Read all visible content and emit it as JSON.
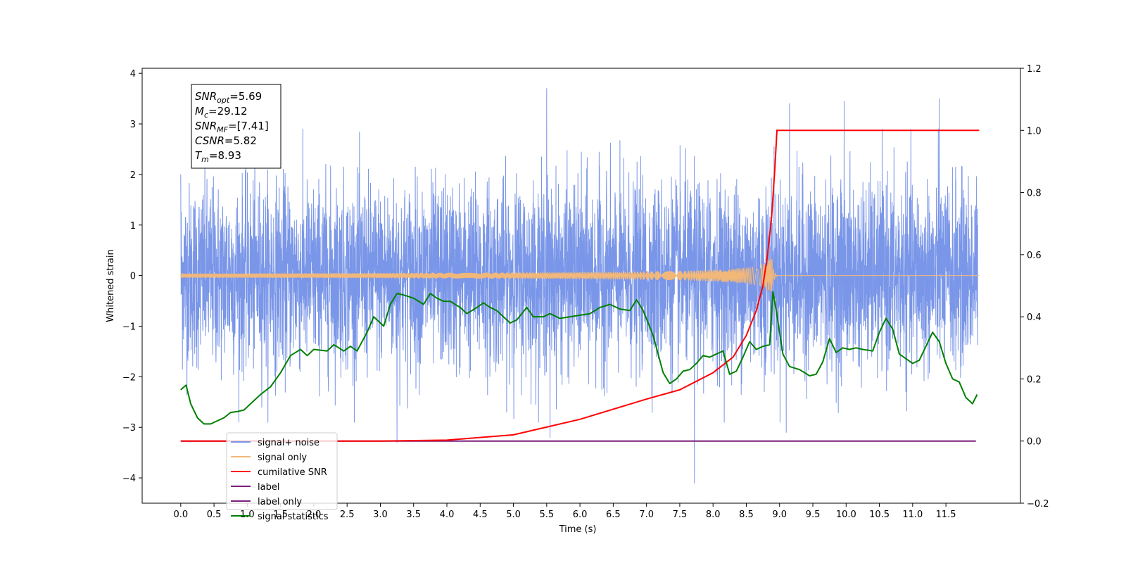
{
  "chart_data": {
    "type": "line",
    "xlabel": "Time (s)",
    "ylabel": "Whitened strain",
    "xlim": [
      -0.58,
      12.62
    ],
    "ylim_left": [
      -4.5,
      4.1
    ],
    "ylim_right": [
      -0.2,
      1.2
    ],
    "x_ticks": [
      "0.0",
      "0.5",
      "1.0",
      "1.5",
      "2.0",
      "2.5",
      "3.0",
      "3.5",
      "4.0",
      "4.5",
      "5.0",
      "5.5",
      "6.0",
      "6.5",
      "7.0",
      "7.5",
      "8.0",
      "8.5",
      "9.0",
      "9.5",
      "10.0",
      "10.5",
      "11.0",
      "11.5"
    ],
    "y_ticks_left": [
      "4",
      "3",
      "2",
      "1",
      "0",
      "−1",
      "−2",
      "−3",
      "−4"
    ],
    "y_ticks_right": [
      "1.2",
      "1.0",
      "0.8",
      "0.6",
      "0.4",
      "0.2",
      "0.0",
      "−0.2"
    ],
    "info_box": [
      {
        "base": "SNR",
        "sub": "opt",
        "rest": "=5.69"
      },
      {
        "base": "M",
        "sub": "c",
        "rest": "=29.12"
      },
      {
        "base": "SNR",
        "sub": "MF",
        "rest": "=[7.41]"
      },
      {
        "base": "CSNR",
        "sub": "",
        "rest": "=5.82"
      },
      {
        "base": "T",
        "sub": "m",
        "rest": "=8.93"
      }
    ],
    "series": [
      {
        "name": "signal+ noise",
        "color": "#7a96e8",
        "axis": "left",
        "noise_std": 0.9,
        "extremes": [
          {
            "x": 0.0,
            "y": 2.0
          },
          {
            "x": 3.25,
            "y": -3.3
          },
          {
            "x": 5.5,
            "y": 3.7
          },
          {
            "x": 5.55,
            "y": -3.2
          },
          {
            "x": 7.72,
            "y": -4.1
          },
          {
            "x": 9.1,
            "y": -3.1
          },
          {
            "x": 9.15,
            "y": 3.4
          },
          {
            "x": 9.97,
            "y": 3.45
          },
          {
            "x": 11.4,
            "y": 3.5
          }
        ]
      },
      {
        "name": "signal only",
        "color": "#f2b879",
        "axis": "left",
        "peak_time": 8.88,
        "peak_amplitude": 0.45
      },
      {
        "name": "cumilative SNR",
        "color": "#ff0000",
        "axis": "right",
        "points": [
          [
            0.0,
            0.0
          ],
          [
            3.0,
            0.0
          ],
          [
            4.0,
            0.003
          ],
          [
            5.0,
            0.02
          ],
          [
            6.0,
            0.07
          ],
          [
            7.0,
            0.135
          ],
          [
            7.5,
            0.165
          ],
          [
            8.0,
            0.22
          ],
          [
            8.3,
            0.27
          ],
          [
            8.5,
            0.34
          ],
          [
            8.65,
            0.42
          ],
          [
            8.75,
            0.5
          ],
          [
            8.82,
            0.6
          ],
          [
            8.88,
            0.72
          ],
          [
            8.93,
            0.88
          ],
          [
            8.96,
            1.0
          ],
          [
            12.0,
            1.0
          ]
        ]
      },
      {
        "name": "label",
        "color": "#7b1f7b",
        "axis": "right",
        "points": [
          [
            0.0,
            0.0
          ],
          [
            11.95,
            0.0
          ]
        ]
      },
      {
        "name": "label only",
        "color": "#7b1f7b",
        "axis": "right",
        "points": []
      },
      {
        "name": "signal statistics",
        "color": "#008000",
        "axis": "right",
        "points": [
          [
            0.0,
            0.165
          ],
          [
            0.08,
            0.18
          ],
          [
            0.15,
            0.12
          ],
          [
            0.25,
            0.075
          ],
          [
            0.35,
            0.055
          ],
          [
            0.45,
            0.055
          ],
          [
            0.55,
            0.065
          ],
          [
            0.65,
            0.075
          ],
          [
            0.75,
            0.092
          ],
          [
            0.85,
            0.095
          ],
          [
            0.95,
            0.1
          ],
          [
            1.05,
            0.12
          ],
          [
            1.2,
            0.15
          ],
          [
            1.35,
            0.175
          ],
          [
            1.5,
            0.22
          ],
          [
            1.65,
            0.275
          ],
          [
            1.8,
            0.295
          ],
          [
            1.9,
            0.275
          ],
          [
            2.0,
            0.295
          ],
          [
            2.2,
            0.29
          ],
          [
            2.3,
            0.31
          ],
          [
            2.45,
            0.29
          ],
          [
            2.55,
            0.305
          ],
          [
            2.65,
            0.29
          ],
          [
            2.8,
            0.35
          ],
          [
            2.9,
            0.4
          ],
          [
            3.05,
            0.37
          ],
          [
            3.15,
            0.44
          ],
          [
            3.25,
            0.475
          ],
          [
            3.35,
            0.47
          ],
          [
            3.5,
            0.46
          ],
          [
            3.65,
            0.44
          ],
          [
            3.75,
            0.475
          ],
          [
            3.85,
            0.46
          ],
          [
            3.95,
            0.45
          ],
          [
            4.05,
            0.45
          ],
          [
            4.2,
            0.43
          ],
          [
            4.3,
            0.41
          ],
          [
            4.45,
            0.43
          ],
          [
            4.55,
            0.445
          ],
          [
            4.65,
            0.43
          ],
          [
            4.75,
            0.42
          ],
          [
            4.85,
            0.4
          ],
          [
            4.95,
            0.38
          ],
          [
            5.05,
            0.39
          ],
          [
            5.2,
            0.43
          ],
          [
            5.3,
            0.4
          ],
          [
            5.45,
            0.4
          ],
          [
            5.55,
            0.41
          ],
          [
            5.7,
            0.395
          ],
          [
            5.85,
            0.4
          ],
          [
            6.0,
            0.405
          ],
          [
            6.15,
            0.41
          ],
          [
            6.3,
            0.43
          ],
          [
            6.45,
            0.44
          ],
          [
            6.6,
            0.425
          ],
          [
            6.75,
            0.42
          ],
          [
            6.85,
            0.455
          ],
          [
            6.95,
            0.42
          ],
          [
            7.1,
            0.34
          ],
          [
            7.25,
            0.22
          ],
          [
            7.35,
            0.185
          ],
          [
            7.45,
            0.2
          ],
          [
            7.55,
            0.225
          ],
          [
            7.65,
            0.23
          ],
          [
            7.75,
            0.25
          ],
          [
            7.85,
            0.275
          ],
          [
            7.95,
            0.27
          ],
          [
            8.05,
            0.28
          ],
          [
            8.15,
            0.29
          ],
          [
            8.25,
            0.215
          ],
          [
            8.35,
            0.225
          ],
          [
            8.45,
            0.27
          ],
          [
            8.55,
            0.32
          ],
          [
            8.65,
            0.295
          ],
          [
            8.75,
            0.305
          ],
          [
            8.85,
            0.31
          ],
          [
            8.9,
            0.48
          ],
          [
            8.95,
            0.42
          ],
          [
            9.05,
            0.28
          ],
          [
            9.15,
            0.24
          ],
          [
            9.3,
            0.23
          ],
          [
            9.45,
            0.21
          ],
          [
            9.55,
            0.215
          ],
          [
            9.65,
            0.255
          ],
          [
            9.75,
            0.33
          ],
          [
            9.85,
            0.285
          ],
          [
            9.95,
            0.3
          ],
          [
            10.05,
            0.295
          ],
          [
            10.15,
            0.3
          ],
          [
            10.25,
            0.295
          ],
          [
            10.4,
            0.29
          ],
          [
            10.5,
            0.35
          ],
          [
            10.6,
            0.395
          ],
          [
            10.7,
            0.36
          ],
          [
            10.8,
            0.28
          ],
          [
            10.9,
            0.265
          ],
          [
            11.0,
            0.25
          ],
          [
            11.1,
            0.26
          ],
          [
            11.2,
            0.305
          ],
          [
            11.3,
            0.35
          ],
          [
            11.4,
            0.32
          ],
          [
            11.5,
            0.25
          ],
          [
            11.6,
            0.2
          ],
          [
            11.7,
            0.19
          ],
          [
            11.8,
            0.14
          ],
          [
            11.9,
            0.12
          ],
          [
            11.97,
            0.15
          ]
        ]
      }
    ],
    "legend": {
      "placement": "lower-left",
      "entries": [
        "signal+ noise",
        "signal only",
        "cumilative SNR",
        "label",
        "label only",
        "signal statistics"
      ]
    },
    "grid": false
  }
}
